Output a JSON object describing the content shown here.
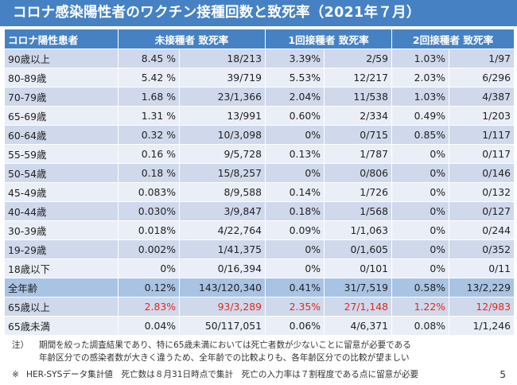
{
  "title": "コロナ感染陽性者のワクチン接種回数と致死率（2021年７月）",
  "table": {
    "headers": {
      "group": "コロナ陽性患者",
      "unvaccinated": "未接種者 致死率",
      "one_dose": "1回接種者 致死率",
      "two_dose": "2回接種者 致死率"
    },
    "rows": [
      {
        "age": "90歳以上",
        "r0": "8.45 %",
        "f0": "18/213",
        "r1": "3.39%",
        "f1": "2/59",
        "r2": "1.03%",
        "f2": "1/97"
      },
      {
        "age": "80-89歳",
        "r0": "5.42 %",
        "f0": "39/719",
        "r1": "5.53%",
        "f1": "12/217",
        "r2": "2.03%",
        "f2": "6/296"
      },
      {
        "age": "70-79歳",
        "r0": "1.68 %",
        "f0": "23/1,366",
        "r1": "2.04%",
        "f1": "11/538",
        "r2": "1.03%",
        "f2": "4/387"
      },
      {
        "age": "65-69歳",
        "r0": "1.31 %",
        "f0": "13/991",
        "r1": "0.60%",
        "f1": "2/334",
        "r2": "0.49%",
        "f2": "1/203"
      },
      {
        "age": "60-64歳",
        "r0": "0.32 %",
        "f0": "10/3,098",
        "r1": "0%",
        "f1": "0/715",
        "r2": "0.85%",
        "f2": "1/117"
      },
      {
        "age": "55-59歳",
        "r0": "0.16 %",
        "f0": "9/5,728",
        "r1": "0.13%",
        "f1": "1/787",
        "r2": "0%",
        "f2": "0/117"
      },
      {
        "age": "50-54歳",
        "r0": "0.18 %",
        "f0": "15/8,257",
        "r1": "0%",
        "f1": "0/806",
        "r2": "0%",
        "f2": "0/146"
      },
      {
        "age": "45-49歳",
        "r0": "0.083%",
        "f0": "8/9,588",
        "r1": "0.14%",
        "f1": "1/726",
        "r2": "0%",
        "f2": "0/132"
      },
      {
        "age": "40-44歳",
        "r0": "0.030%",
        "f0": "3/9,847",
        "r1": "0.18%",
        "f1": "1/568",
        "r2": "0%",
        "f2": "0/127"
      },
      {
        "age": "30-39歳",
        "r0": "0.018%",
        "f0": "4/22,764",
        "r1": "0.09%",
        "f1": "1/1,063",
        "r2": "0%",
        "f2": "0/244"
      },
      {
        "age": "19-29歳",
        "r0": "0.002%",
        "f0": "1/41,375",
        "r1": "0%",
        "f1": "0/1,605",
        "r2": "0%",
        "f2": "0/352"
      },
      {
        "age": "18歳以下",
        "r0": "0%",
        "f0": "0/16,394",
        "r1": "0%",
        "f1": "0/101",
        "r2": "0%",
        "f2": "0/11"
      }
    ],
    "total": {
      "age": "全年齢",
      "r0": "0.12%",
      "f0": "143/120,340",
      "r1": "0.41%",
      "f1": "31/7,519",
      "r2": "0.58%",
      "f2": "13/2,229"
    },
    "senior": {
      "age": "65歳以上",
      "r0": "2.83%",
      "f0": "93/3,289",
      "r1": "2.35%",
      "f1": "27/1,148",
      "r2": "1.22%",
      "f2": "12/983"
    },
    "under65": {
      "age": "65歳未満",
      "r0": "0.04%",
      "f0": "50/117,051",
      "r1": "0.06%",
      "f1": "4/6,371",
      "r2": "0.08%",
      "f2": "1/1,246"
    }
  },
  "notes": {
    "mark": "注）",
    "line1": "期間を絞った調査結果であり、特に65歳未満においては死亡者数が少ないことに留意が必要である",
    "line2": "年齢区分での感染者数が大きく違うため、全年齢での比較よりも、各年齢区分での比較が望ましい"
  },
  "footnote": {
    "mark": "※",
    "text": "HER-SYSデータ集計値　死亡数は８月31日時点で集計　死亡の入力率は７割程度である点に留意が必要"
  },
  "page_number": "5",
  "colors": {
    "header_blue": "#4682c3",
    "row_dark": "#cfd9eb",
    "row_light": "#e9eef7",
    "summary": "#a9c3e3",
    "highlight_red": "#e8251a"
  }
}
